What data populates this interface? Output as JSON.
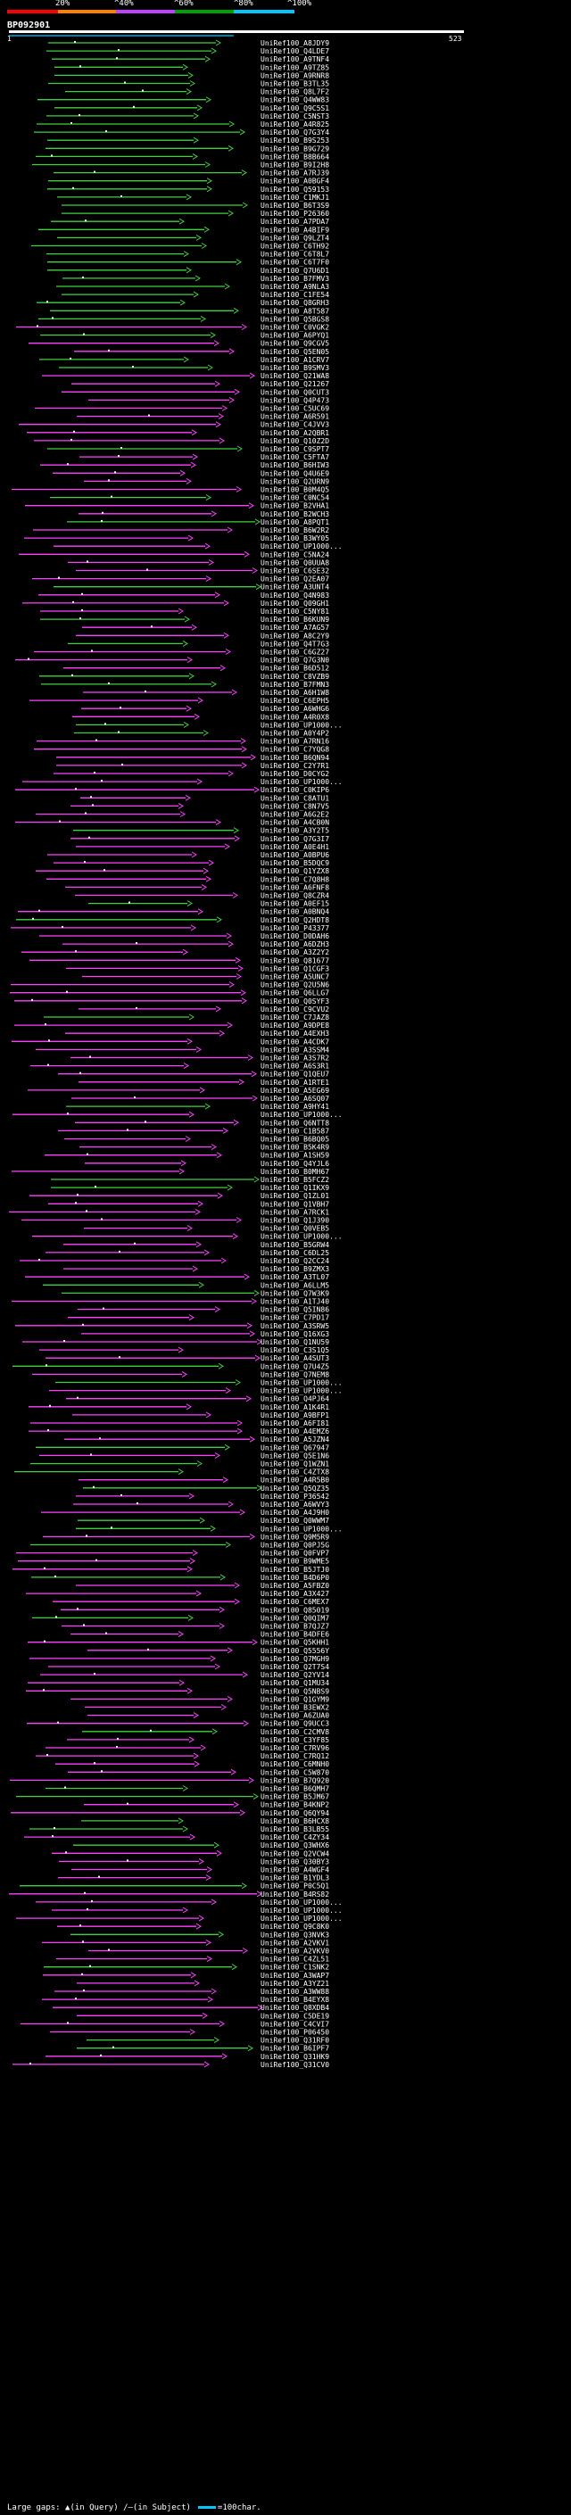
{
  "scale": {
    "labels": [
      "20%",
      "^40%",
      "^60%",
      "^80%",
      "^100%"
    ],
    "colors": [
      "#ff0000",
      "#ff8000",
      "#c040ff",
      "#00a000",
      "#00c8ff"
    ]
  },
  "query": {
    "title": "BP092901",
    "start": "1",
    "end": "523"
  },
  "colors": {
    "pink": "#ff40ff",
    "green": "#40d040",
    "cyan": "#00c8ff",
    "white": "#ffffff"
  },
  "hits": [
    "UniRef100_A8JDY9",
    "UniRef100_Q4LDE7",
    "UniRef100_A9TNF4",
    "UniRef100_A9TZ85",
    "UniRef100_A9RNR8",
    "UniRef100_B3TL35",
    "UniRef100_Q8L7F2",
    "UniRef100_Q4WW83",
    "UniRef100_Q9C5S1",
    "UniRef100_C5NST3",
    "UniRef100_A4R825",
    "UniRef100_Q7G3Y4",
    "UniRef100_B9S253",
    "UniRef100_B9G729",
    "UniRef100_B8B664",
    "UniRef100_B9I2H8",
    "UniRef100_A7RJ39",
    "UniRef100_A0BGF4",
    "UniRef100_Q59153",
    "UniRef100_C1MKJ1",
    "UniRef100_B6T3S9",
    "UniRef100_P26360",
    "UniRef100_A7PDA7",
    "UniRef100_A4BIF9",
    "UniRef100_Q9LZT4",
    "UniRef100_C6TH92",
    "UniRef100_C6T8L7",
    "UniRef100_C6T7F0",
    "UniRef100_Q7U6D1",
    "UniRef100_B7FMV3",
    "UniRef100_A9NLA3",
    "UniRef100_C1FE54",
    "UniRef100_Q8GRH3",
    "UniRef100_A8T587",
    "UniRef100_Q5BGS8",
    "UniRef100_C0VGK2",
    "UniRef100_A6PYQ1",
    "UniRef100_Q9CGV5",
    "UniRef100_Q5EN05",
    "UniRef100_A1CRV7",
    "UniRef100_B9SMV3",
    "UniRef100_Q21WA8",
    "UniRef100_Q21267",
    "UniRef100_Q0CUT3",
    "UniRef100_Q4P473",
    "UniRef100_C5UC69",
    "UniRef100_A6R591",
    "UniRef100_C4JVV3",
    "UniRef100_A2QBR1",
    "UniRef100_Q10Z2D",
    "UniRef100_C9SPT7",
    "UniRef100_C5FTA7",
    "UniRef100_B6HIW3",
    "UniRef100_Q4U6E9",
    "UniRef100_Q2URN9",
    "UniRef100_B0M4Q5",
    "UniRef100_C0NC54",
    "UniRef100_B2VHA1",
    "UniRef100_B2WCH3",
    "UniRef100_A8PQT1",
    "UniRef100_B6W2R2",
    "UniRef100_B3WY05",
    "UniRef100_UP1000...",
    "UniRef100_C5NA24",
    "UniRef100_Q0UUA8",
    "UniRef100_C6SE32",
    "UniRef100_Q2EA07",
    "UniRef100_A3UNT4",
    "UniRef100_Q4N983",
    "UniRef100_Q09GH1",
    "UniRef100_C5NY81",
    "UniRef100_B6KUN9",
    "UniRef100_A7AG57",
    "UniRef100_A8C2Y9",
    "UniRef100_Q4T7G3",
    "UniRef100_C6GZ27",
    "UniRef100_Q7G3N0",
    "UniRef100_B6D512",
    "UniRef100_C8VZB9",
    "UniRef100_B7FMN3",
    "UniRef100_A6H1W8",
    "UniRef100_C6EPH5",
    "UniRef100_A6WHG6",
    "UniRef100_A4R0X8",
    "UniRef100_UP1000...",
    "UniRef100_A0Y4P2",
    "UniRef100_A7RN16",
    "UniRef100_C7YQG8",
    "UniRef100_B6QN94",
    "UniRef100_C2Y7R1",
    "UniRef100_D0CYG2",
    "UniRef100_UP1000...",
    "UniRef100_C0KIP6",
    "UniRef100_C8ATU1",
    "UniRef100_C8N7V5",
    "UniRef100_A6G2E2",
    "UniRef100_A4CB0N",
    "UniRef100_A3Y2T5",
    "UniRef100_Q7G3I7",
    "UniRef100_A0E4H1",
    "UniRef100_A0BPU6",
    "UniRef100_B5DQC9",
    "UniRef100_Q1YZX8",
    "UniRef100_C7Q8H8",
    "UniRef100_A6FNF8",
    "UniRef100_Q8CZR4",
    "UniRef100_A0EF15",
    "UniRef100_A0BNQ4",
    "UniRef100_Q2HDT8",
    "UniRef100_P43377",
    "UniRef100_D0DAH6",
    "UniRef100_A6DZH3",
    "UniRef100_A3Z2Y2",
    "UniRef100_Q81677",
    "UniRef100_Q1CGF3",
    "UniRef100_A5UNC7",
    "UniRef100_Q2U5N6",
    "UniRef100_Q6LLG7",
    "UniRef100_Q0SYF3",
    "UniRef100_C9CVU2",
    "UniRef100_C7JAZ8",
    "UniRef100_A9DPE8",
    "UniRef100_A4EXH3",
    "UniRef100_A4CDK7",
    "UniRef100_A3SSM4",
    "UniRef100_A3S7R2",
    "UniRef100_A6S3R1",
    "UniRef100_Q1QEU7",
    "UniRef100_A1RTE1",
    "UniRef100_A5EG69",
    "UniRef100_A6SQ07",
    "UniRef100_A9HY41",
    "UniRef100_UP1000...",
    "UniRef100_Q6NTT8",
    "UniRef100_C1B587",
    "UniRef100_B6BQ05",
    "UniRef100_B5K4R9",
    "UniRef100_A1SH59",
    "UniRef100_Q4YJL6",
    "UniRef100_B0MH67",
    "UniRef100_B5FCZ2",
    "UniRef100_Q1IKX9",
    "UniRef100_Q1ZL01",
    "UniRef100_Q1VBH7",
    "UniRef100_A7RCK1",
    "UniRef100_Q1J390",
    "UniRef100_Q0VEB5",
    "UniRef100_UP1000...",
    "UniRef100_B5GRW4",
    "UniRef100_C6DL25",
    "UniRef100_Q2CC24",
    "UniRef100_B9ZMX3",
    "UniRef100_A3TL07",
    "UniRef100_A6LLM5",
    "UniRef100_Q7W3K9",
    "UniRef100_A1TJ40",
    "UniRef100_Q5IN86",
    "UniRef100_C7PD17",
    "UniRef100_A3SRW5",
    "UniRef100_Q16XG3",
    "UniRef100_Q1NU59",
    "UniRef100_C3S1Q5",
    "UniRef100_A4SUT3",
    "UniRef100_Q7U4Z5",
    "UniRef100_Q7NEM8",
    "UniRef100_UP1000...",
    "UniRef100_UP1000...",
    "UniRef100_Q4PJ64",
    "UniRef100_A1K4R1",
    "UniRef100_A9BFP1",
    "UniRef100_A6FI81",
    "UniRef100_A4EMZ6",
    "UniRef100_A5JZN4",
    "UniRef100_Q67947",
    "UniRef100_Q5E1N6",
    "UniRef100_Q1WZN1",
    "UniRef100_C4ZTX8",
    "UniRef100_A4R5B0",
    "UniRef100_Q5QZ35",
    "UniRef100_P36542",
    "UniRef100_A6WVY3",
    "UniRef100_A4J9H0",
    "UniRef100_Q0WWM7",
    "UniRef100_UP1000...",
    "UniRef100_Q9M5R9",
    "UniRef100_Q0PJ5G",
    "UniRef100_Q0FVP7",
    "UniRef100_B9WME5",
    "UniRef100_B5JTJ0",
    "UniRef100_B4D6P0",
    "UniRef100_A5FBZ0",
    "UniRef100_A3X427",
    "UniRef100_C6MEX7",
    "UniRef100_Q85019",
    "UniRef100_Q0QIM7",
    "UniRef100_B7QJZ7",
    "UniRef100_B4DFE6",
    "UniRef100_Q5KHH1",
    "UniRef100_Q5556Y",
    "UniRef100_Q7MGH9",
    "UniRef100_Q2T7S4",
    "UniRef100_Q2YV14",
    "UniRef100_Q1MU34",
    "UniRef100_Q5NBS9",
    "UniRef100_Q1GYM9",
    "UniRef100_B3EWX2",
    "UniRef100_A6ZUA0",
    "UniRef100_Q9UCC3",
    "UniRef100_C2CMV8",
    "UniRef100_C3YF85",
    "UniRef100_C7RV96",
    "UniRef100_C7RQ12",
    "UniRef100_C6MNH0",
    "UniRef100_C5W870",
    "UniRef100_B7Q920",
    "UniRef100_B6QMH7",
    "UniRef100_B5JM67",
    "UniRef100_B4KNP2",
    "UniRef100_Q6QY94",
    "UniRef100_B6HCX8",
    "UniRef100_B3LB55",
    "UniRef100_C4ZY34",
    "UniRef100_Q3WHX6",
    "UniRef100_Q2VCW4",
    "UniRef100_Q30BY3",
    "UniRef100_A4WGF4",
    "UniRef100_B1YDL3",
    "UniRef100_P0C5Q1",
    "UniRef100_B4RS82",
    "UniRef100_UP1000...",
    "UniRef100_UP1000...",
    "UniRef100_UP1000...",
    "UniRef100_Q9C8K0",
    "UniRef100_Q3NVK3",
    "UniRef100_A2VKV1",
    "UniRef100_A2VKV0",
    "UniRef100_C4ZL51",
    "UniRef100_C1SNK2",
    "UniRef100_A3WAP7",
    "UniRef100_A3YZ21",
    "UniRef100_A3WW88",
    "UniRef100_B4EYX8",
    "UniRef100_Q8XDB4",
    "UniRef100_C5DE19",
    "UniRef100_C4CVI7",
    "UniRef100_P06450",
    "UniRef100_Q31RF0",
    "UniRef100_B6IPF7",
    "UniRef100_Q31HK9",
    "UniRef100_Q31CV0"
  ],
  "footer": {
    "large_gaps_label": "Large gaps: ",
    "query_gap": "▲(in Query)",
    "subject_gap": "/–(in Subject)",
    "scale_label": "=100char."
  }
}
